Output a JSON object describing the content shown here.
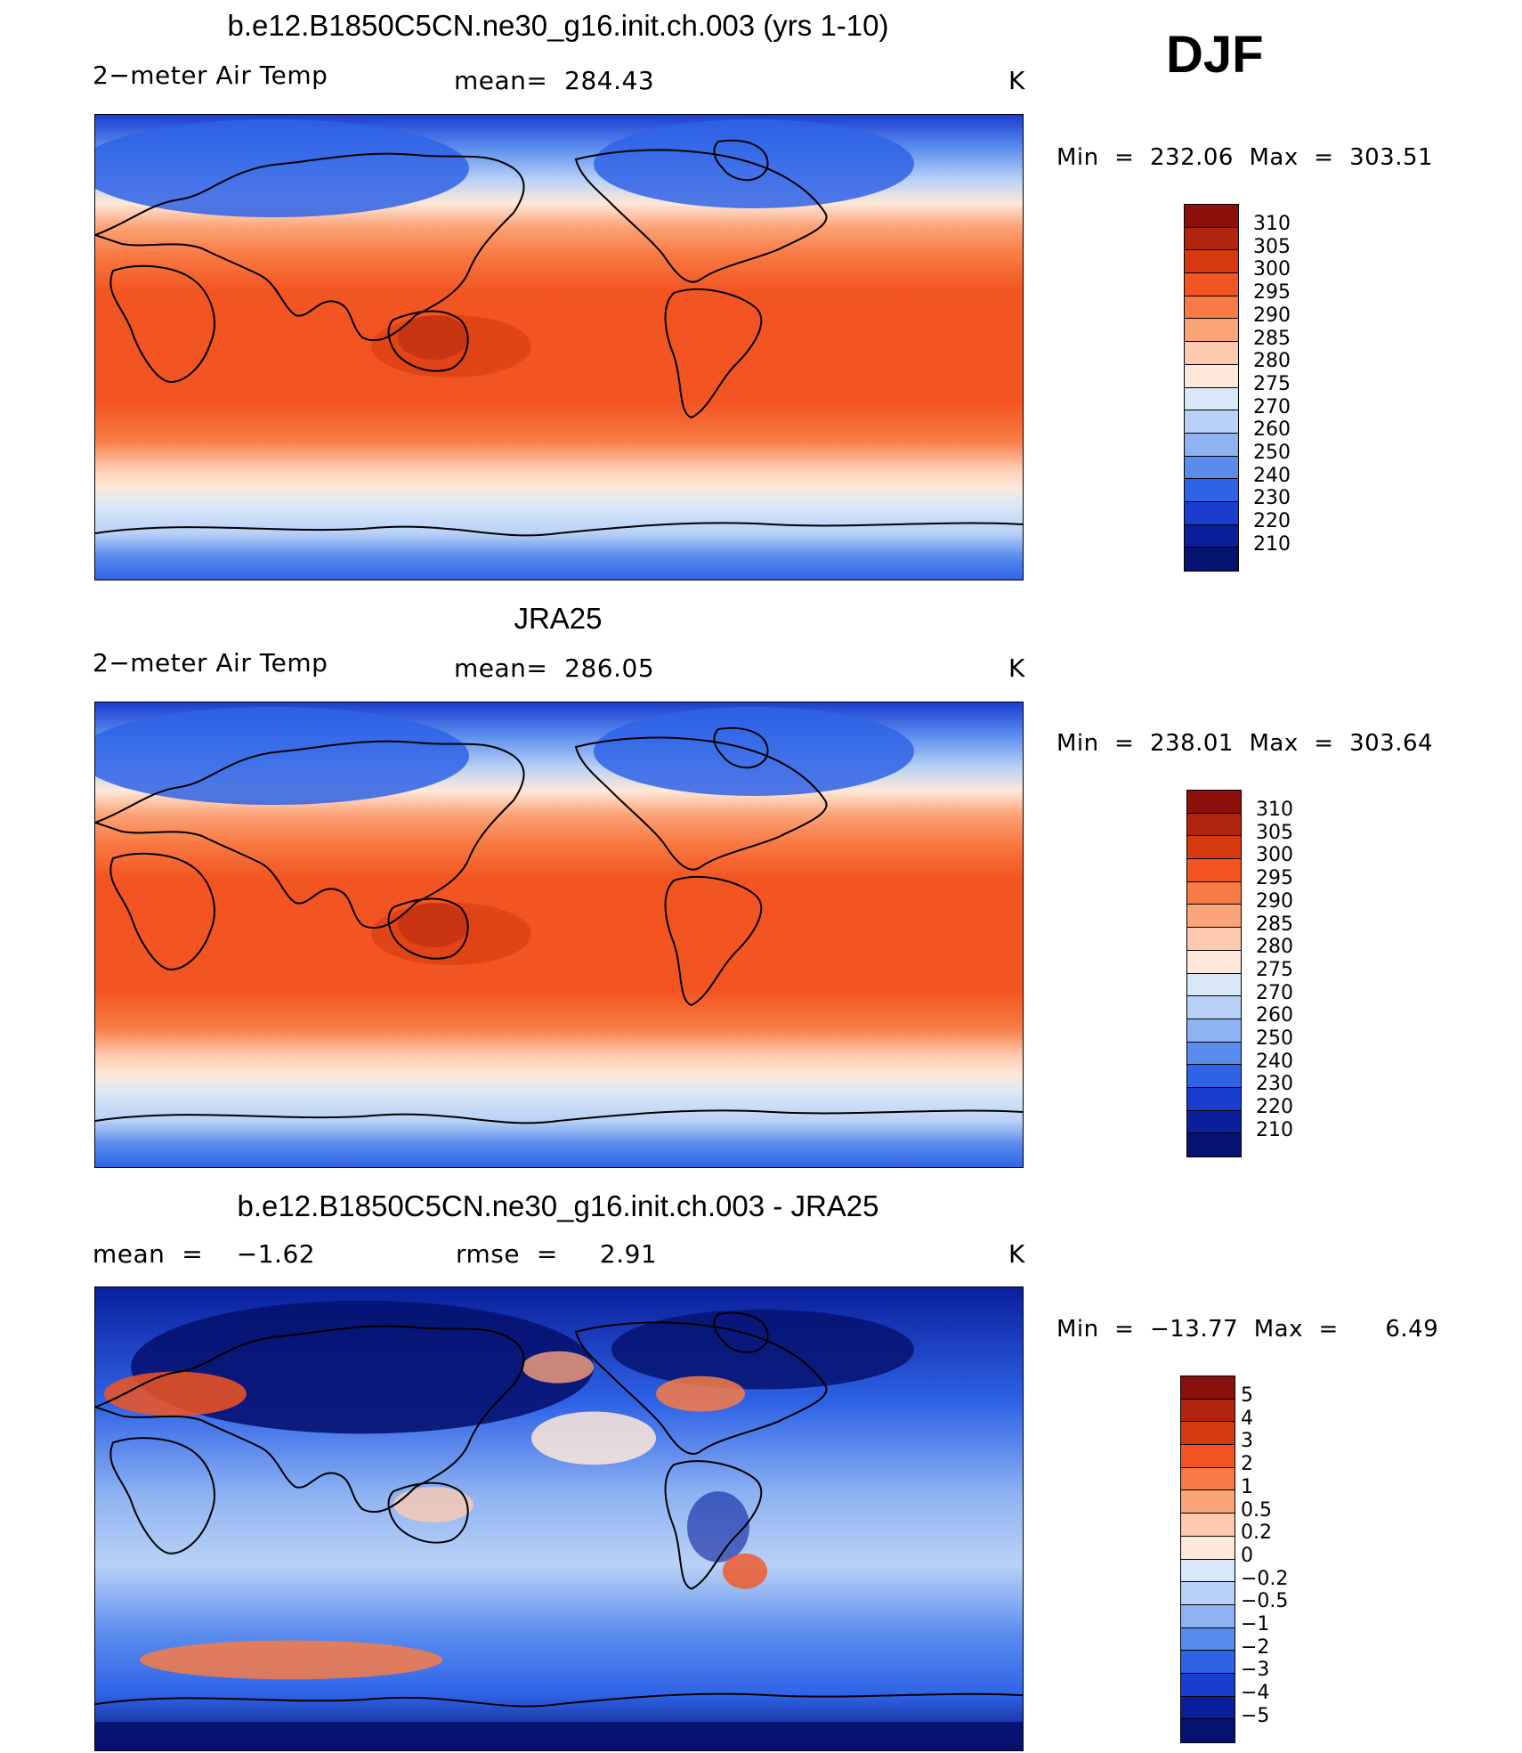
{
  "season": "DJF",
  "panels": [
    {
      "id": "model",
      "title": "b.e12.B1850C5CN.ne30_g16.init.ch.003 (yrs 1-10)",
      "left_label": "2−meter Air Temp",
      "center_label": "mean=  284.43",
      "units": "K",
      "minmax": "Min  =  232.06  Max  =  303.51",
      "colorbar_labels": [
        "310",
        "305",
        "300",
        "295",
        "290",
        "285",
        "280",
        "275",
        "270",
        "260",
        "250",
        "240",
        "230",
        "220",
        "210"
      ],
      "colorbar_colors": [
        "#8b0f0a",
        "#b1240d",
        "#d6390f",
        "#f25521",
        "#f87b45",
        "#fba479",
        "#fdcab0",
        "#fee8d9",
        "#d8e8f8",
        "#b9d1f6",
        "#8fb3f2",
        "#5a8cee",
        "#2f63e6",
        "#1b3dcf",
        "#0a1f9c",
        "#061270"
      ],
      "map_style": "warm"
    },
    {
      "id": "obs",
      "title": "JRA25",
      "left_label": "2−meter Air Temp",
      "center_label": "mean=  286.05",
      "units": "K",
      "minmax": "Min  =  238.01  Max  =  303.64",
      "colorbar_labels": [
        "310",
        "305",
        "300",
        "295",
        "290",
        "285",
        "280",
        "275",
        "270",
        "260",
        "250",
        "240",
        "230",
        "220",
        "210"
      ],
      "colorbar_colors": [
        "#8b0f0a",
        "#b1240d",
        "#d6390f",
        "#f25521",
        "#f87b45",
        "#fba479",
        "#fdcab0",
        "#fee8d9",
        "#d8e8f8",
        "#b9d1f6",
        "#8fb3f2",
        "#5a8cee",
        "#2f63e6",
        "#1b3dcf",
        "#0a1f9c",
        "#061270"
      ],
      "map_style": "warm"
    },
    {
      "id": "diff",
      "title": "b.e12.B1850C5CN.ne30_g16.init.ch.003 - JRA25",
      "left_label": "mean  =    −1.62",
      "center_label": "rmse  =     2.91",
      "units": "K",
      "minmax": "Min  =  −13.77  Max  =      6.49",
      "colorbar_labels": [
        "5",
        "4",
        "3",
        "2",
        "1",
        "0.5",
        "0.2",
        "0",
        "−0.2",
        "−0.5",
        "−1",
        "−2",
        "−3",
        "−4",
        "−5"
      ],
      "colorbar_colors": [
        "#8b0f0a",
        "#b1240d",
        "#d6390f",
        "#f25521",
        "#f87b45",
        "#fba479",
        "#fdcab0",
        "#fee8d9",
        "#d8e8f8",
        "#b9d1f6",
        "#8fb3f2",
        "#5a8cee",
        "#2f63e6",
        "#1b3dcf",
        "#0a1f9c",
        "#061270"
      ],
      "map_style": "diff"
    }
  ]
}
